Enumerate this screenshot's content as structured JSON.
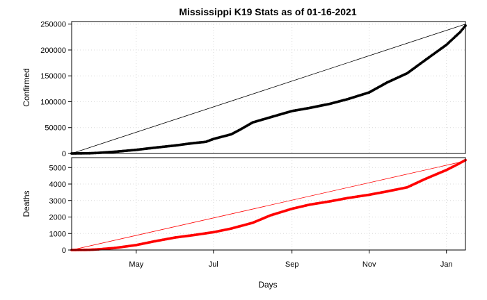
{
  "chart_data": {
    "title": "Mississippi K19 Stats as of 01-16-2021",
    "xlabel": "Days",
    "x_start": "2020-03-11",
    "x_end": "2021-01-16",
    "x_ticks": [
      {
        "date": "2020-05-01",
        "label": "May"
      },
      {
        "date": "2020-07-01",
        "label": "Jul"
      },
      {
        "date": "2020-09-01",
        "label": "Sep"
      },
      {
        "date": "2020-11-01",
        "label": "Nov"
      },
      {
        "date": "2021-01-01",
        "label": "Jan"
      }
    ],
    "grid": true,
    "panels": [
      {
        "name": "confirmed",
        "type": "scatter",
        "ylabel": "Confirmed",
        "ylim": [
          0,
          255000
        ],
        "y_ticks": [
          0,
          50000,
          100000,
          150000,
          200000,
          250000
        ],
        "color": "#000000",
        "line_color": "#000000",
        "trend_line": {
          "from": [
            "2020-03-11",
            0
          ],
          "to": [
            "2021-01-16",
            250000
          ]
        },
        "points": [
          [
            "2020-03-11",
            0
          ],
          [
            "2020-03-25",
            400
          ],
          [
            "2020-04-01",
            1100
          ],
          [
            "2020-04-15",
            3500
          ],
          [
            "2020-05-01",
            7000
          ],
          [
            "2020-05-15",
            11000
          ],
          [
            "2020-06-01",
            15500
          ],
          [
            "2020-06-15",
            20000
          ],
          [
            "2020-06-25",
            22500
          ],
          [
            "2020-07-01",
            28000
          ],
          [
            "2020-07-15",
            37000
          ],
          [
            "2020-07-22",
            46000
          ],
          [
            "2020-08-01",
            60000
          ],
          [
            "2020-08-15",
            70000
          ],
          [
            "2020-09-01",
            82000
          ],
          [
            "2020-09-15",
            88000
          ],
          [
            "2020-10-01",
            96000
          ],
          [
            "2020-10-15",
            105000
          ],
          [
            "2020-11-01",
            118000
          ],
          [
            "2020-11-15",
            137000
          ],
          [
            "2020-12-01",
            155000
          ],
          [
            "2020-12-15",
            180000
          ],
          [
            "2021-01-01",
            210000
          ],
          [
            "2021-01-12",
            235000
          ],
          [
            "2021-01-16",
            247000
          ]
        ]
      },
      {
        "name": "deaths",
        "type": "scatter",
        "ylabel": "Deaths",
        "ylim": [
          0,
          5600
        ],
        "y_ticks": [
          0,
          1000,
          2000,
          3000,
          4000,
          5000
        ],
        "color": "#ff0000",
        "line_color": "#ff0000",
        "trend_line": {
          "from": [
            "2020-03-11",
            0
          ],
          "to": [
            "2021-01-16",
            5400
          ]
        },
        "points": [
          [
            "2020-03-11",
            0
          ],
          [
            "2020-03-25",
            10
          ],
          [
            "2020-04-01",
            40
          ],
          [
            "2020-04-15",
            130
          ],
          [
            "2020-05-01",
            300
          ],
          [
            "2020-05-15",
            520
          ],
          [
            "2020-06-01",
            760
          ],
          [
            "2020-06-15",
            900
          ],
          [
            "2020-07-01",
            1080
          ],
          [
            "2020-07-15",
            1300
          ],
          [
            "2020-08-01",
            1650
          ],
          [
            "2020-08-15",
            2100
          ],
          [
            "2020-09-01",
            2500
          ],
          [
            "2020-09-15",
            2750
          ],
          [
            "2020-10-01",
            2950
          ],
          [
            "2020-10-15",
            3150
          ],
          [
            "2020-11-01",
            3350
          ],
          [
            "2020-11-15",
            3550
          ],
          [
            "2020-12-01",
            3800
          ],
          [
            "2020-12-15",
            4300
          ],
          [
            "2021-01-01",
            4850
          ],
          [
            "2021-01-10",
            5200
          ],
          [
            "2021-01-16",
            5450
          ]
        ]
      }
    ]
  }
}
